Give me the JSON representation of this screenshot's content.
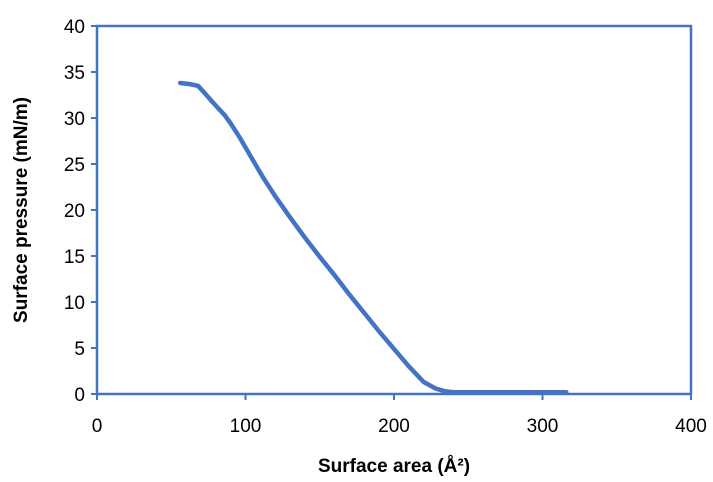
{
  "chart_data": {
    "type": "line",
    "title": "",
    "xlabel": "Surface area (Å²)",
    "ylabel": "Surface pressure (mN/m)",
    "xlim": [
      0,
      400
    ],
    "ylim": [
      0,
      40
    ],
    "x_ticks": [
      0,
      100,
      200,
      300,
      400
    ],
    "y_ticks": [
      0,
      5,
      10,
      15,
      20,
      25,
      30,
      35,
      40
    ],
    "x_tick_labels": [
      "0",
      "100",
      "200",
      "300",
      "400"
    ],
    "y_tick_labels": [
      "0",
      "5",
      "10",
      "15",
      "20",
      "25",
      "30",
      "35",
      "40"
    ],
    "grid": false,
    "legend": "none",
    "colors": {
      "series": "#4472C4",
      "frame": "#4472C4"
    },
    "series": [
      {
        "x": [
          56,
          62,
          68,
          72,
          78,
          86,
          90,
          96,
          104,
          112,
          120,
          130,
          140,
          150,
          160,
          170,
          180,
          190,
          200,
          210,
          220,
          228,
          234,
          240,
          246,
          250,
          260,
          280,
          300,
          316
        ],
        "y": [
          33.8,
          33.7,
          33.5,
          32.8,
          31.7,
          30.3,
          29.4,
          27.9,
          25.7,
          23.5,
          21.5,
          19.2,
          17.0,
          14.9,
          12.9,
          10.8,
          8.8,
          6.8,
          4.9,
          3.0,
          1.3,
          0.6,
          0.3,
          0.2,
          0.2,
          0.2,
          0.2,
          0.2,
          0.2,
          0.2
        ]
      }
    ]
  }
}
